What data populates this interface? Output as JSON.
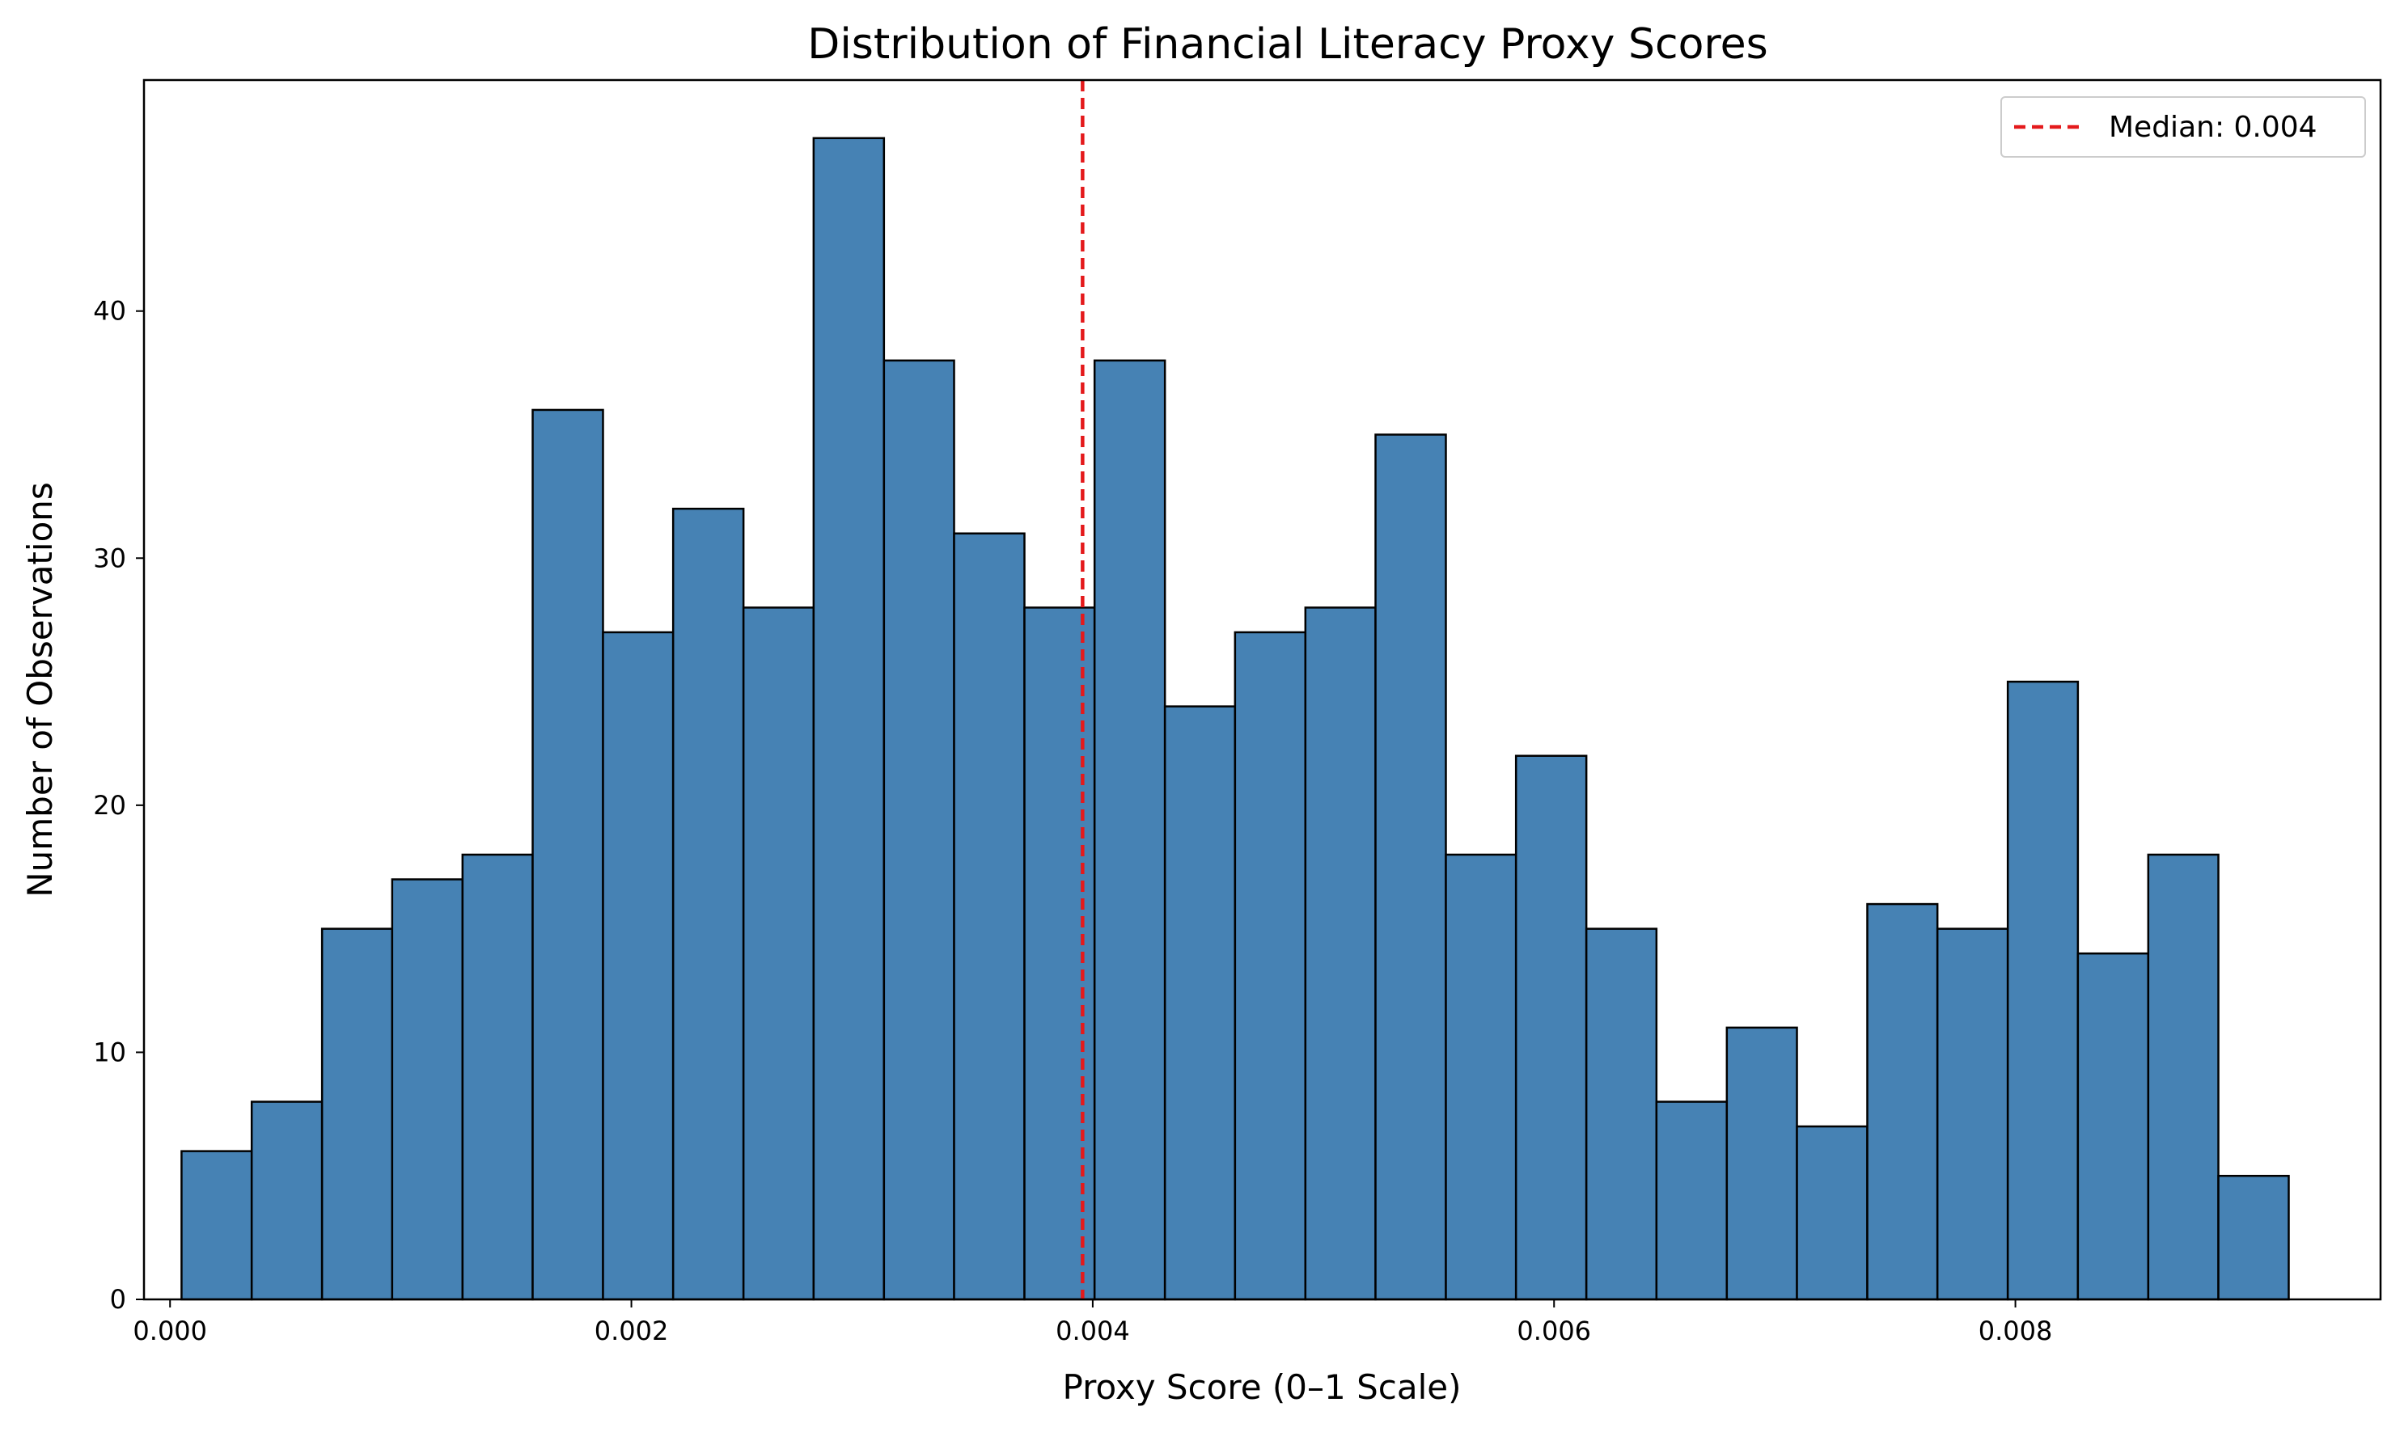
{
  "chart_data": {
    "type": "bar",
    "title": "Distribution of Financial Literacy Proxy Scores",
    "xlabel": "Proxy Score (0–1 Scale)",
    "ylabel": "Number of Observations",
    "xlim": [
      -0.000113,
      0.009583
    ],
    "ylim": [
      0,
      49.35
    ],
    "x_ticks": [
      0,
      0.002,
      0.004,
      0.006,
      0.008
    ],
    "x_tick_labels": [
      "0.000",
      "0.002",
      "0.004",
      "0.006",
      "0.008"
    ],
    "y_ticks": [
      0,
      10,
      20,
      30,
      40
    ],
    "y_tick_labels": [
      "0",
      "10",
      "20",
      "30",
      "40"
    ],
    "bin_edges": [
      4.98e-05,
      0.000354,
      0.000659,
      0.000963,
      0.001268,
      0.001572,
      0.001877,
      0.002181,
      0.002486,
      0.00279,
      0.003095,
      0.003399,
      0.003704,
      0.004008,
      0.004313,
      0.004617,
      0.004922,
      0.005226,
      0.005531,
      0.005835,
      0.00614,
      0.006444,
      0.006749,
      0.007053,
      0.007358,
      0.007662,
      0.007967,
      0.008271,
      0.008576,
      0.00888,
      0.009185
    ],
    "counts": [
      6,
      8,
      15,
      17,
      18,
      36,
      27,
      32,
      28,
      47,
      38,
      31,
      28,
      38,
      24,
      27,
      28,
      35,
      18,
      22,
      15,
      8,
      11,
      7,
      16,
      15,
      25,
      14,
      18,
      5
    ],
    "bar_color": "#4682b4",
    "edge_color": "#000000",
    "median": {
      "value": 0.003956,
      "label": "Median: 0.004",
      "color": "#e41a1c"
    },
    "grid": false,
    "legend_position": "top-right"
  }
}
